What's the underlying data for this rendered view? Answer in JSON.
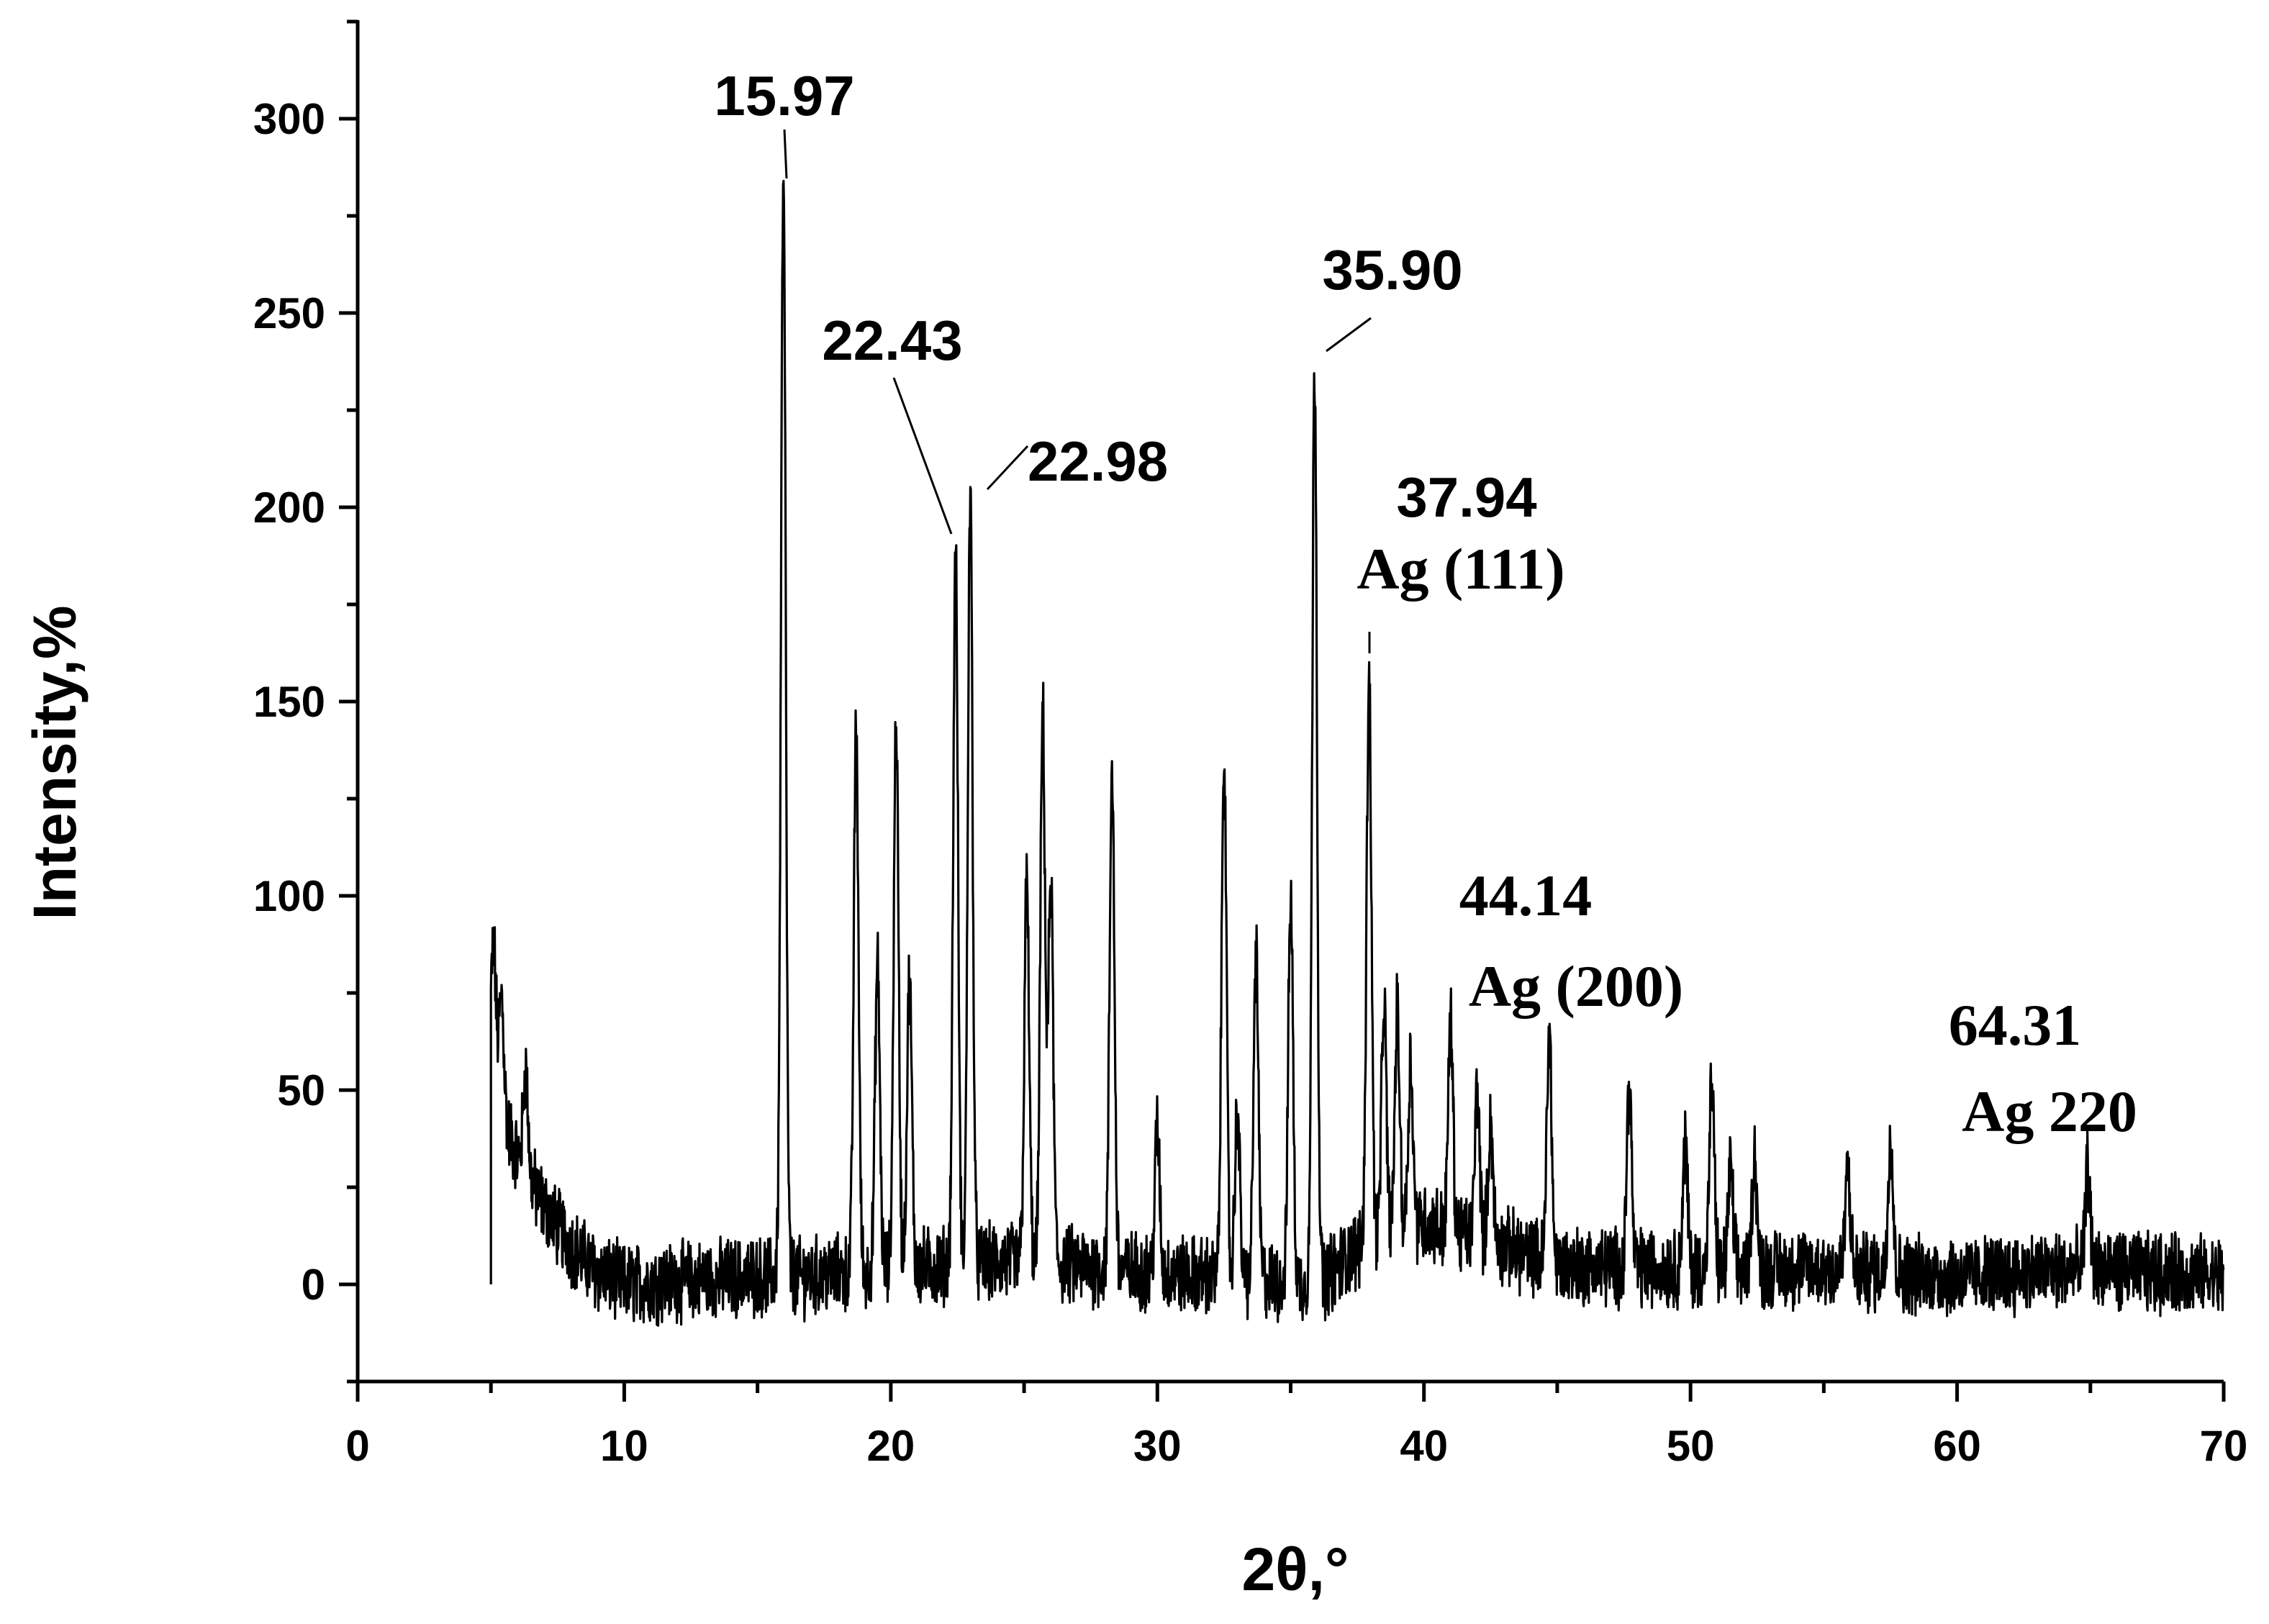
{
  "chart_data": {
    "type": "line",
    "title": "",
    "xlabel": "2θ,°",
    "ylabel": "Intensity,%",
    "xlim": [
      0,
      70
    ],
    "ylim": [
      -25,
      325
    ],
    "x_ticks": [
      0,
      10,
      20,
      30,
      40,
      50,
      60,
      70
    ],
    "y_ticks": [
      0,
      50,
      100,
      150,
      200,
      250,
      300
    ],
    "grid": false,
    "legend": "none",
    "line_color": "#000000",
    "x_range": [
      5,
      70
    ],
    "baseline_noise_amplitude": 9,
    "background_profile": [
      [
        5,
        55
      ],
      [
        5.5,
        42
      ],
      [
        6,
        33
      ],
      [
        7,
        20
      ],
      [
        8,
        10
      ],
      [
        9,
        3
      ],
      [
        10,
        0
      ],
      [
        15,
        2
      ],
      [
        17,
        2
      ],
      [
        20,
        4
      ],
      [
        25,
        6
      ],
      [
        30,
        3
      ],
      [
        36,
        0
      ],
      [
        38,
        12
      ],
      [
        40,
        16
      ],
      [
        42,
        12
      ],
      [
        45,
        5
      ],
      [
        50,
        4
      ],
      [
        55,
        4
      ],
      [
        60,
        2
      ],
      [
        65,
        4
      ],
      [
        70,
        2
      ]
    ],
    "peaks": [
      {
        "x": 5.1,
        "y": 88
      },
      {
        "x": 5.4,
        "y": 74
      },
      {
        "x": 6.3,
        "y": 55
      },
      {
        "x": 15.97,
        "y": 282
      },
      {
        "x": 18.7,
        "y": 143
      },
      {
        "x": 19.5,
        "y": 82
      },
      {
        "x": 20.2,
        "y": 146
      },
      {
        "x": 20.7,
        "y": 78
      },
      {
        "x": 22.43,
        "y": 188
      },
      {
        "x": 22.98,
        "y": 203
      },
      {
        "x": 25.1,
        "y": 103
      },
      {
        "x": 25.7,
        "y": 147
      },
      {
        "x": 26.0,
        "y": 105
      },
      {
        "x": 28.3,
        "y": 133
      },
      {
        "x": 30.0,
        "y": 40
      },
      {
        "x": 32.5,
        "y": 140
      },
      {
        "x": 33.0,
        "y": 45
      },
      {
        "x": 33.7,
        "y": 85
      },
      {
        "x": 35.0,
        "y": 100
      },
      {
        "x": 35.9,
        "y": 237
      },
      {
        "x": 37.94,
        "y": 158
      },
      {
        "x": 38.5,
        "y": 72
      },
      {
        "x": 39.0,
        "y": 70
      },
      {
        "x": 39.5,
        "y": 58
      },
      {
        "x": 41.0,
        "y": 68
      },
      {
        "x": 42.0,
        "y": 50
      },
      {
        "x": 42.5,
        "y": 42
      },
      {
        "x": 44.7,
        "y": 66
      },
      {
        "x": 47.7,
        "y": 52
      },
      {
        "x": 49.8,
        "y": 36
      },
      {
        "x": 50.8,
        "y": 52
      },
      {
        "x": 51.5,
        "y": 30
      },
      {
        "x": 52.4,
        "y": 34
      },
      {
        "x": 55.9,
        "y": 30
      },
      {
        "x": 57.5,
        "y": 40
      },
      {
        "x": 64.9,
        "y": 30
      }
    ],
    "annotations": [
      {
        "label": "15.97",
        "x": 15.97
      },
      {
        "label": "22.43",
        "x": 22.43
      },
      {
        "label": "22.98",
        "x": 22.98
      },
      {
        "label": "35.90",
        "x": 35.9
      },
      {
        "label": "37.94",
        "sublabel": "Ag (111)",
        "x": 37.94
      },
      {
        "label": "44.14",
        "sublabel": "Ag (200)",
        "x": 44.14
      },
      {
        "label": "64.31",
        "sublabel": "Ag 220",
        "x": 64.31
      }
    ]
  }
}
